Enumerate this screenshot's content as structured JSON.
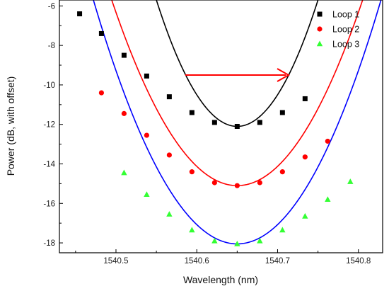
{
  "chart_data": {
    "type": "line",
    "title": "",
    "xlabel": "Wavelength (nm)",
    "ylabel": "Power (dB, with offset)",
    "xlim": [
      1540.43,
      1540.83
    ],
    "ylim": [
      -18.5,
      -5.7
    ],
    "xticks": [
      1540.5,
      1540.6,
      1540.7,
      1540.8
    ],
    "xtick_labels": [
      "1540.5",
      "1540.6",
      "1540.7",
      "1540.8"
    ],
    "yticks": [
      -18,
      -16,
      -14,
      -12,
      -10,
      -8,
      -6
    ],
    "ytick_labels": [
      "-18",
      "-16",
      "-14",
      "-12",
      "-10",
      "-8",
      "-6"
    ],
    "grid": false,
    "legend_position": "top-right",
    "annotation": "red arrow pointing right",
    "series": [
      {
        "name": "Loop 1",
        "marker": "square",
        "marker_color": "#000000",
        "line_color": "#000000",
        "points": [
          [
            1540.455,
            -6.4
          ],
          [
            1540.482,
            -7.4
          ],
          [
            1540.51,
            -8.5
          ],
          [
            1540.538,
            -9.55
          ],
          [
            1540.566,
            -10.6
          ],
          [
            1540.594,
            -11.4
          ],
          [
            1540.622,
            -11.9
          ],
          [
            1540.65,
            -12.1
          ],
          [
            1540.678,
            -11.9
          ],
          [
            1540.706,
            -11.4
          ],
          [
            1540.734,
            -10.7
          ]
        ],
        "fit": {
          "x0": 1540.65,
          "ymin": -12.1,
          "a": 640,
          "xrange": [
            1540.43,
            1540.83
          ]
        }
      },
      {
        "name": "Loop 2",
        "marker": "circle",
        "marker_color": "#ff0000",
        "line_color": "#ff0000",
        "points": [
          [
            1540.482,
            -10.4
          ],
          [
            1540.51,
            -11.45
          ],
          [
            1540.538,
            -12.55
          ],
          [
            1540.566,
            -13.55
          ],
          [
            1540.594,
            -14.4
          ],
          [
            1540.622,
            -14.95
          ],
          [
            1540.65,
            -15.1
          ],
          [
            1540.678,
            -14.95
          ],
          [
            1540.706,
            -14.4
          ],
          [
            1540.734,
            -13.65
          ],
          [
            1540.762,
            -12.85
          ]
        ],
        "fit": {
          "x0": 1540.65,
          "ymin": -15.1,
          "a": 390,
          "xrange": [
            1540.43,
            1540.83
          ]
        }
      },
      {
        "name": "Loop 3",
        "marker": "triangle",
        "marker_color": "#33ff33",
        "line_color": "#0000ff",
        "points": [
          [
            1540.51,
            -14.45
          ],
          [
            1540.538,
            -15.55
          ],
          [
            1540.566,
            -16.55
          ],
          [
            1540.594,
            -17.35
          ],
          [
            1540.622,
            -17.9
          ],
          [
            1540.65,
            -18.05
          ],
          [
            1540.678,
            -17.9
          ],
          [
            1540.706,
            -17.35
          ],
          [
            1540.734,
            -16.65
          ],
          [
            1540.762,
            -15.8
          ],
          [
            1540.79,
            -14.9
          ]
        ],
        "fit": {
          "x0": 1540.65,
          "ymin": -18.05,
          "a": 390,
          "xrange": [
            1540.43,
            1540.83
          ]
        }
      }
    ]
  }
}
